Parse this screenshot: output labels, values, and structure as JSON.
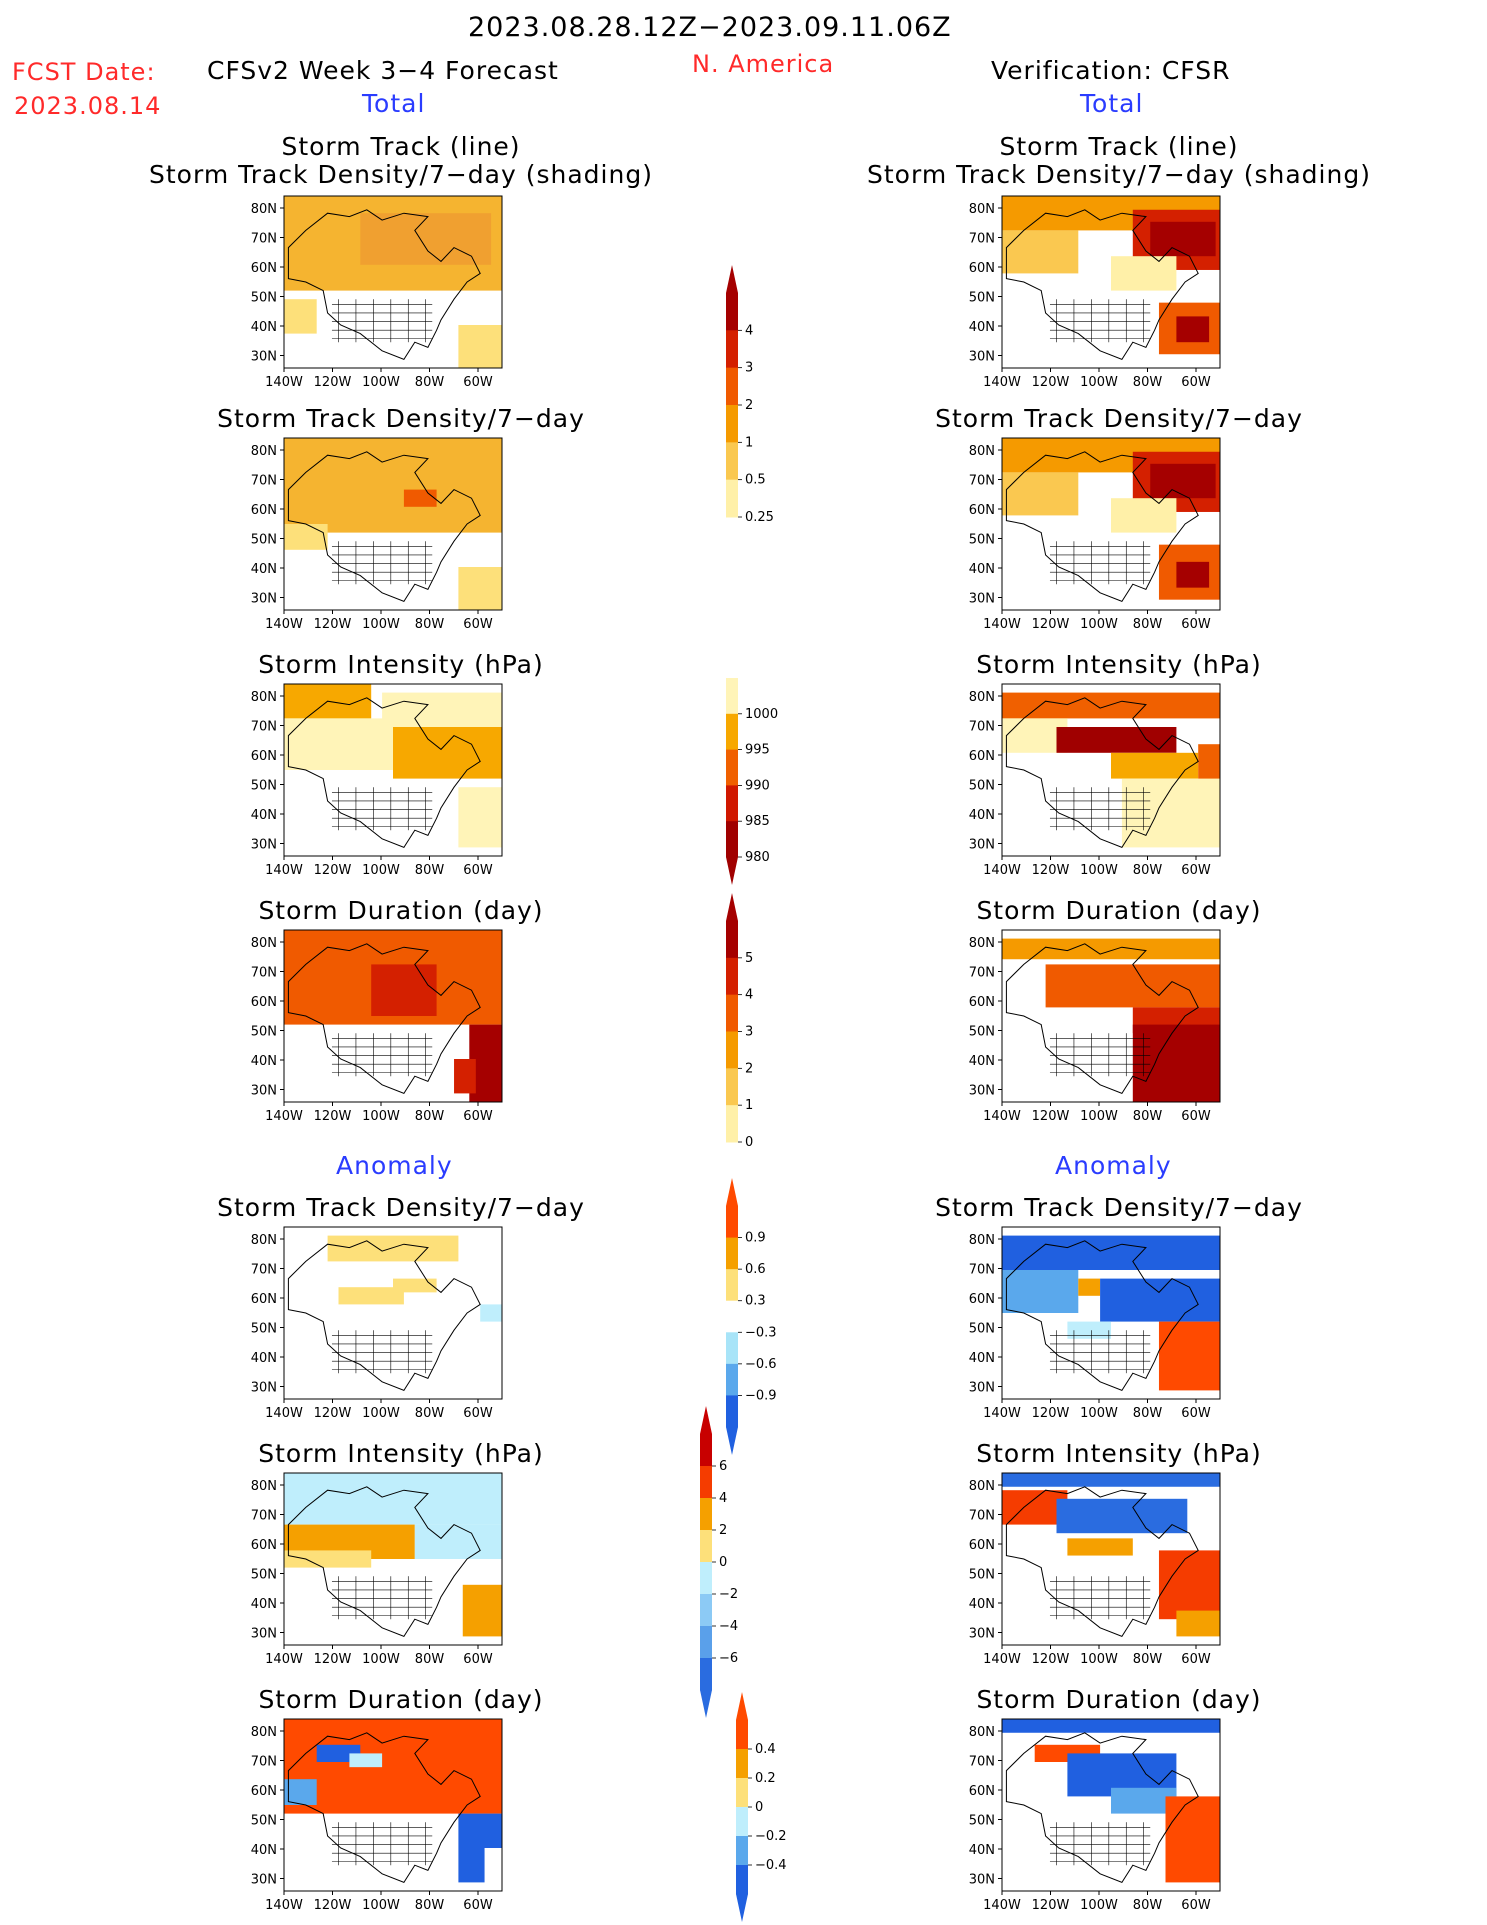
{
  "header": {
    "period": "2023.08.28.12Z−2023.09.11.06Z",
    "fcst_label": "FCST Date:",
    "fcst_date": "2023.08.14",
    "model": "CFSv2 Week 3−4 Forecast",
    "region": "N. America",
    "verification": "Verification: CFSR"
  },
  "columns": {
    "left_total": "Total",
    "right_total": "Total",
    "left_anomaly": "Anomaly",
    "right_anomaly": "Anomaly"
  },
  "panels": [
    {
      "id": "track-fcst",
      "title1": "Storm Track (line)",
      "title2": "Storm Track Density/7−day (shading)"
    },
    {
      "id": "track-obs",
      "title1": "Storm Track (line)",
      "title2": "Storm Track Density/7−day (shading)"
    },
    {
      "id": "density-fcst",
      "title1": "Storm Track Density/7−day"
    },
    {
      "id": "density-obs",
      "title1": "Storm Track Density/7−day"
    },
    {
      "id": "intensity-fcst",
      "title1": "Storm Intensity (hPa)"
    },
    {
      "id": "intensity-obs",
      "title1": "Storm Intensity (hPa)"
    },
    {
      "id": "duration-fcst",
      "title1": "Storm Duration (day)"
    },
    {
      "id": "duration-obs",
      "title1": "Storm Duration (day)"
    },
    {
      "id": "density-anom-fcst",
      "title1": "Storm Track Density/7−day"
    },
    {
      "id": "density-anom-obs",
      "title1": "Storm Track Density/7−day"
    },
    {
      "id": "intensity-anom-fcst",
      "title1": "Storm Intensity (hPa)"
    },
    {
      "id": "intensity-anom-obs",
      "title1": "Storm Intensity (hPa)"
    },
    {
      "id": "duration-anom-fcst",
      "title1": "Storm Duration (day)"
    },
    {
      "id": "duration-anom-obs",
      "title1": "Storm Duration (day)"
    }
  ],
  "chart_data": {
    "type": "heatmap",
    "map_axes": {
      "lat_ticks": [
        "80N",
        "70N",
        "60N",
        "50N",
        "40N",
        "30N"
      ],
      "lon_ticks": [
        "140W",
        "120W",
        "100W",
        "80W",
        "60W"
      ]
    },
    "colorbars": [
      {
        "id": "density",
        "labels": [
          "4",
          "3",
          "2",
          "1",
          "0.5",
          "0.25"
        ],
        "colors": [
          "#a50000",
          "#d42000",
          "#f05a00",
          "#f59a00",
          "#fac850",
          "#fff0a8"
        ]
      },
      {
        "id": "intensity",
        "labels": [
          "1000",
          "995",
          "990",
          "985",
          "980"
        ],
        "colors": [
          "#fff4b8",
          "#f7a800",
          "#f06000",
          "#d01800",
          "#a00000"
        ]
      },
      {
        "id": "duration",
        "labels": [
          "5",
          "4",
          "3",
          "2",
          "1",
          "0"
        ],
        "colors": [
          "#a50000",
          "#d42000",
          "#f05a00",
          "#f59a00",
          "#fac850",
          "#fff0a8"
        ]
      },
      {
        "id": "density-anom",
        "labels": [
          "0.9",
          "0.6",
          "0.3",
          "−0.3",
          "−0.6",
          "−0.9"
        ],
        "colors": [
          "#ff4a00",
          "#f5a000",
          "#fde07a",
          "#ffffff",
          "#a8e4f8",
          "#5aa8ec",
          "#2060e0"
        ]
      },
      {
        "id": "intensity-anom",
        "labels": [
          "6",
          "4",
          "2",
          "0",
          "−2",
          "−4",
          "−6"
        ],
        "colors": [
          "#c80000",
          "#f53c00",
          "#f5a000",
          "#fde07a",
          "#bfeefc",
          "#8ccaf5",
          "#5aa0ea",
          "#2a6ce0"
        ]
      },
      {
        "id": "duration-anom",
        "labels": [
          "0.4",
          "0.2",
          "0",
          "−0.2",
          "−0.4"
        ],
        "colors": [
          "#ff4a00",
          "#f5a000",
          "#fde07a",
          "#bfeefc",
          "#5aa8ec",
          "#2060e0"
        ]
      }
    ]
  }
}
